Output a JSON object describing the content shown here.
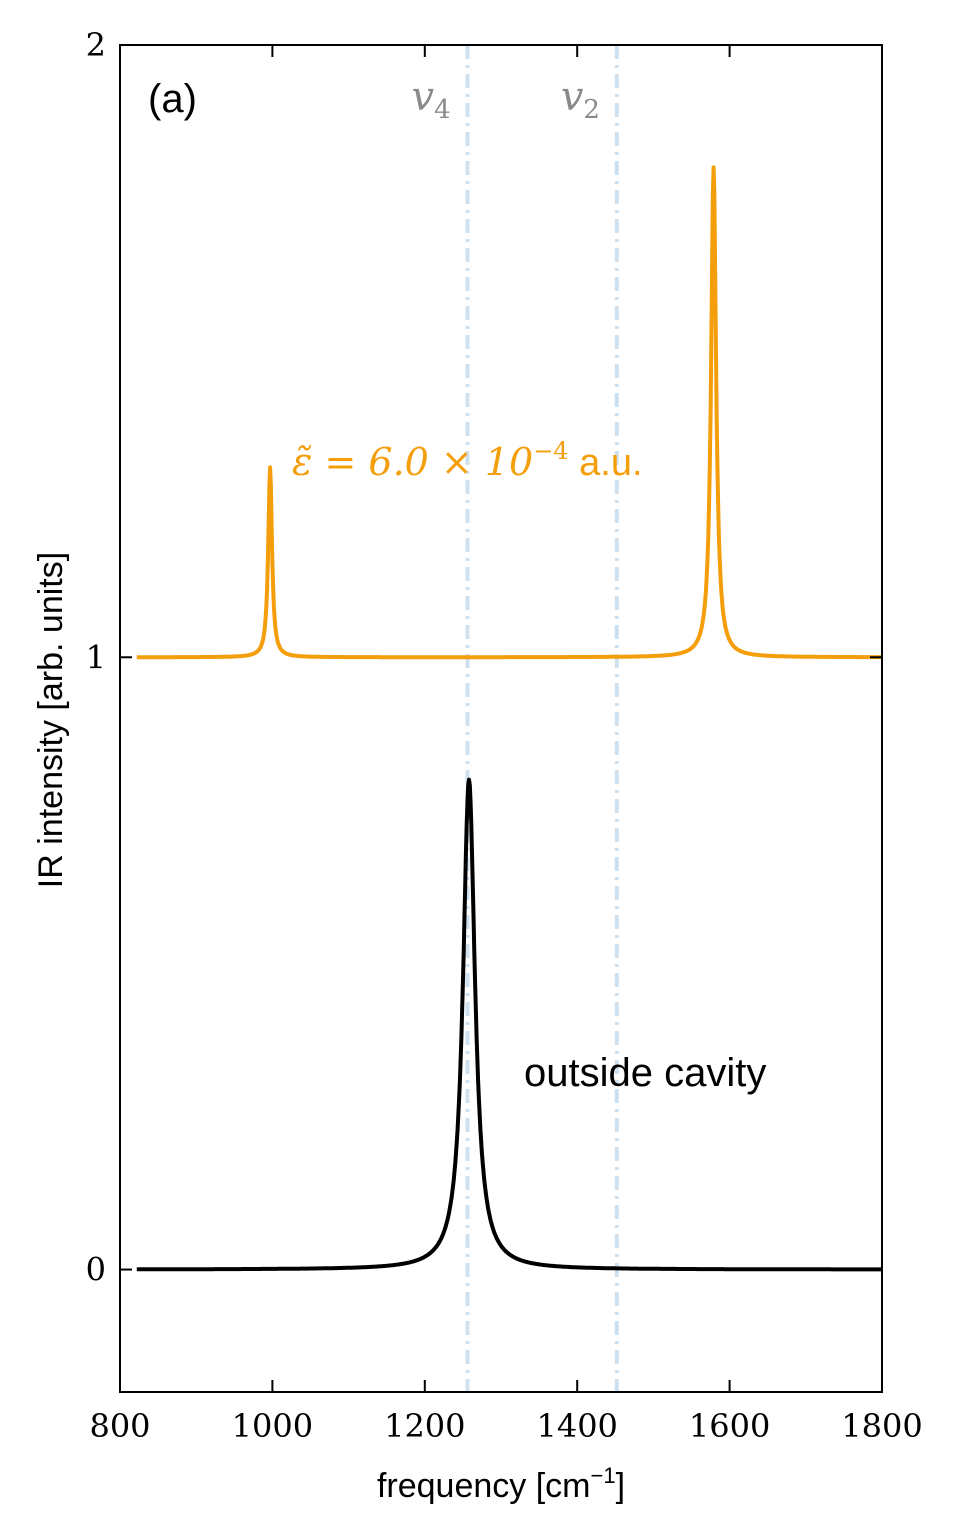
{
  "chart_data": {
    "type": "line",
    "panel_label": "(a)",
    "xlabel": "frequency [cm",
    "xlabel_sup": "−1",
    "xlabel_end": "]",
    "ylabel": "IR intensity [arb. units]",
    "xlim": [
      800,
      1800
    ],
    "ylim": [
      -0.2,
      2
    ],
    "x_ticks": [
      800,
      1000,
      1200,
      1400,
      1600,
      1800
    ],
    "x_tick_labels": [
      "800",
      "1000",
      "1200",
      "1400",
      "1600",
      "1800"
    ],
    "y_ticks": [
      0,
      1,
      2
    ],
    "y_tick_labels": [
      "0",
      "1",
      "2"
    ],
    "grid": false,
    "reference_lines": [
      {
        "x": 1256,
        "label": "v",
        "sub": "4",
        "color": "#cfe0ef"
      },
      {
        "x": 1452,
        "label": "v",
        "sub": "2",
        "color": "#cfe0ef"
      }
    ],
    "series": [
      {
        "id": "cavity",
        "color": "#f59e0b",
        "offset": 1,
        "peaks": [
          {
            "center": 997,
            "height": 0.31,
            "width": 6
          },
          {
            "center": 1579,
            "height": 0.8,
            "width": 8
          }
        ]
      },
      {
        "id": "outside",
        "color": "#000000",
        "offset": 0,
        "peaks": [
          {
            "center": 1258,
            "height": 0.8,
            "width": 19
          }
        ]
      }
    ],
    "annotations": {
      "cavity_prefix": "ε̃ = 6.0 × 10",
      "cavity_exp": "−4",
      "cavity_suffix": " a.u.",
      "outside": "outside cavity"
    }
  }
}
